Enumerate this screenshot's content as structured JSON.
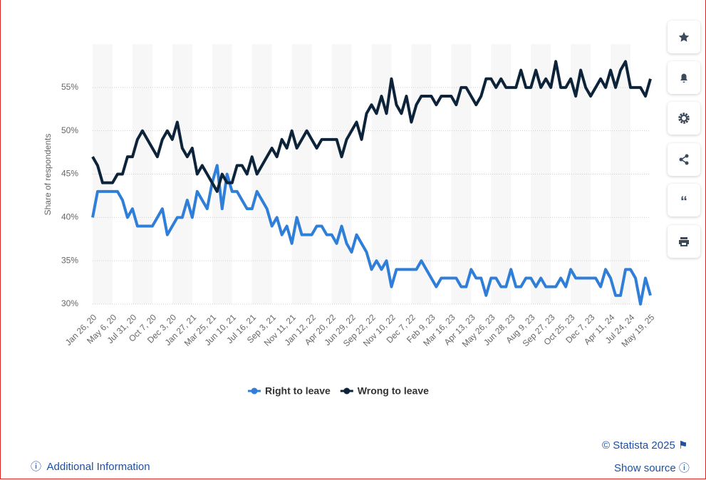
{
  "chart_data": {
    "type": "line",
    "ylabel": "Share of respondents",
    "categories": [
      "Jan 26, 20",
      null,
      null,
      null,
      "May 6, 20",
      null,
      null,
      null,
      "Jul 31, 20",
      null,
      null,
      null,
      "Oct 7, 20",
      null,
      null,
      null,
      "Dec 3, 20",
      null,
      null,
      null,
      "Jan 27, 21",
      null,
      null,
      null,
      "Mar 25, 21",
      null,
      null,
      null,
      "Jun 10, 21",
      null,
      null,
      null,
      "Jul 16, 21",
      null,
      null,
      null,
      "Sep 3, 21",
      null,
      null,
      null,
      "Nov 11, 21",
      null,
      null,
      null,
      "Jan 12, 22",
      null,
      null,
      null,
      "Apr 20, 22",
      null,
      null,
      null,
      "Jun 29, 22",
      null,
      null,
      null,
      "Sep 22, 22",
      null,
      null,
      null,
      "Nov 10, 22",
      null,
      null,
      null,
      "Dec 7, 22",
      null,
      null,
      null,
      "Feb 9, 23",
      null,
      null,
      null,
      "Mar 16, 23",
      null,
      null,
      null,
      "Apr 13, 23",
      null,
      null,
      null,
      "May 26, 23",
      null,
      null,
      null,
      "Jun 28, 23",
      null,
      null,
      null,
      "Aug 9, 23",
      null,
      null,
      null,
      "Sep 27, 23",
      null,
      null,
      null,
      "Oct 25, 23",
      null,
      null,
      null,
      "Dec 7, 23",
      null,
      null,
      null,
      "Apr 11, 24",
      null,
      null,
      null,
      "Jul 24, 24",
      null,
      null,
      null,
      "May 19, 25"
    ],
    "series": [
      {
        "name": "Right to leave",
        "color": "#2f7ed8",
        "values": [
          40,
          43,
          43,
          43,
          43,
          43,
          42,
          40,
          41,
          39,
          39,
          39,
          39,
          40,
          41,
          38,
          39,
          40,
          40,
          42,
          40,
          43,
          42,
          41,
          44,
          46,
          41,
          45,
          43,
          43,
          42,
          41,
          41,
          43,
          42,
          41,
          39,
          40,
          38,
          39,
          37,
          40,
          38,
          38,
          38,
          39,
          39,
          38,
          38,
          37,
          39,
          37,
          36,
          38,
          37,
          36,
          34,
          35,
          34,
          35,
          32,
          34,
          34,
          34,
          34,
          34,
          35,
          34,
          33,
          32,
          33,
          33,
          33,
          33,
          32,
          32,
          34,
          33,
          33,
          31,
          33,
          33,
          32,
          32,
          34,
          32,
          32,
          33,
          33,
          32,
          33,
          32,
          32,
          32,
          33,
          32,
          34,
          33,
          33,
          33,
          33,
          33,
          32,
          34,
          33,
          31,
          31,
          34,
          34,
          33,
          30,
          33,
          31
        ]
      },
      {
        "name": "Wrong to leave",
        "color": "#0d233a",
        "values": [
          47,
          46,
          44,
          44,
          44,
          45,
          45,
          47,
          47,
          49,
          50,
          49,
          48,
          47,
          49,
          50,
          49,
          51,
          48,
          47,
          48,
          45,
          46,
          45,
          44,
          43,
          45,
          44,
          44,
          46,
          46,
          45,
          47,
          45,
          46,
          47,
          48,
          47,
          49,
          48,
          50,
          48,
          49,
          50,
          49,
          48,
          49,
          49,
          49,
          49,
          47,
          49,
          50,
          51,
          49,
          52,
          53,
          52,
          54,
          52,
          56,
          53,
          52,
          54,
          51,
          53,
          54,
          54,
          54,
          53,
          54,
          54,
          54,
          53,
          55,
          55,
          54,
          53,
          54,
          56,
          56,
          55,
          56,
          55,
          55,
          55,
          57,
          55,
          55,
          57,
          55,
          56,
          55,
          58,
          55,
          55,
          56,
          54,
          57,
          55,
          54,
          55,
          56,
          55,
          57,
          55,
          57,
          58,
          55,
          55,
          55,
          54,
          56
        ]
      }
    ],
    "ylim": [
      30,
      60
    ],
    "yticks": [
      {
        "value": 30,
        "label": "30%"
      },
      {
        "value": 35,
        "label": "35%"
      },
      {
        "value": 40,
        "label": "40%"
      },
      {
        "value": 45,
        "label": "45%"
      },
      {
        "value": 50,
        "label": "50%"
      },
      {
        "value": 55,
        "label": "55%"
      }
    ],
    "grid": true,
    "legend": "bottom"
  },
  "footer": {
    "copyright": "© Statista 2025",
    "additional_info": "Additional Information",
    "show_source": "Show source"
  }
}
